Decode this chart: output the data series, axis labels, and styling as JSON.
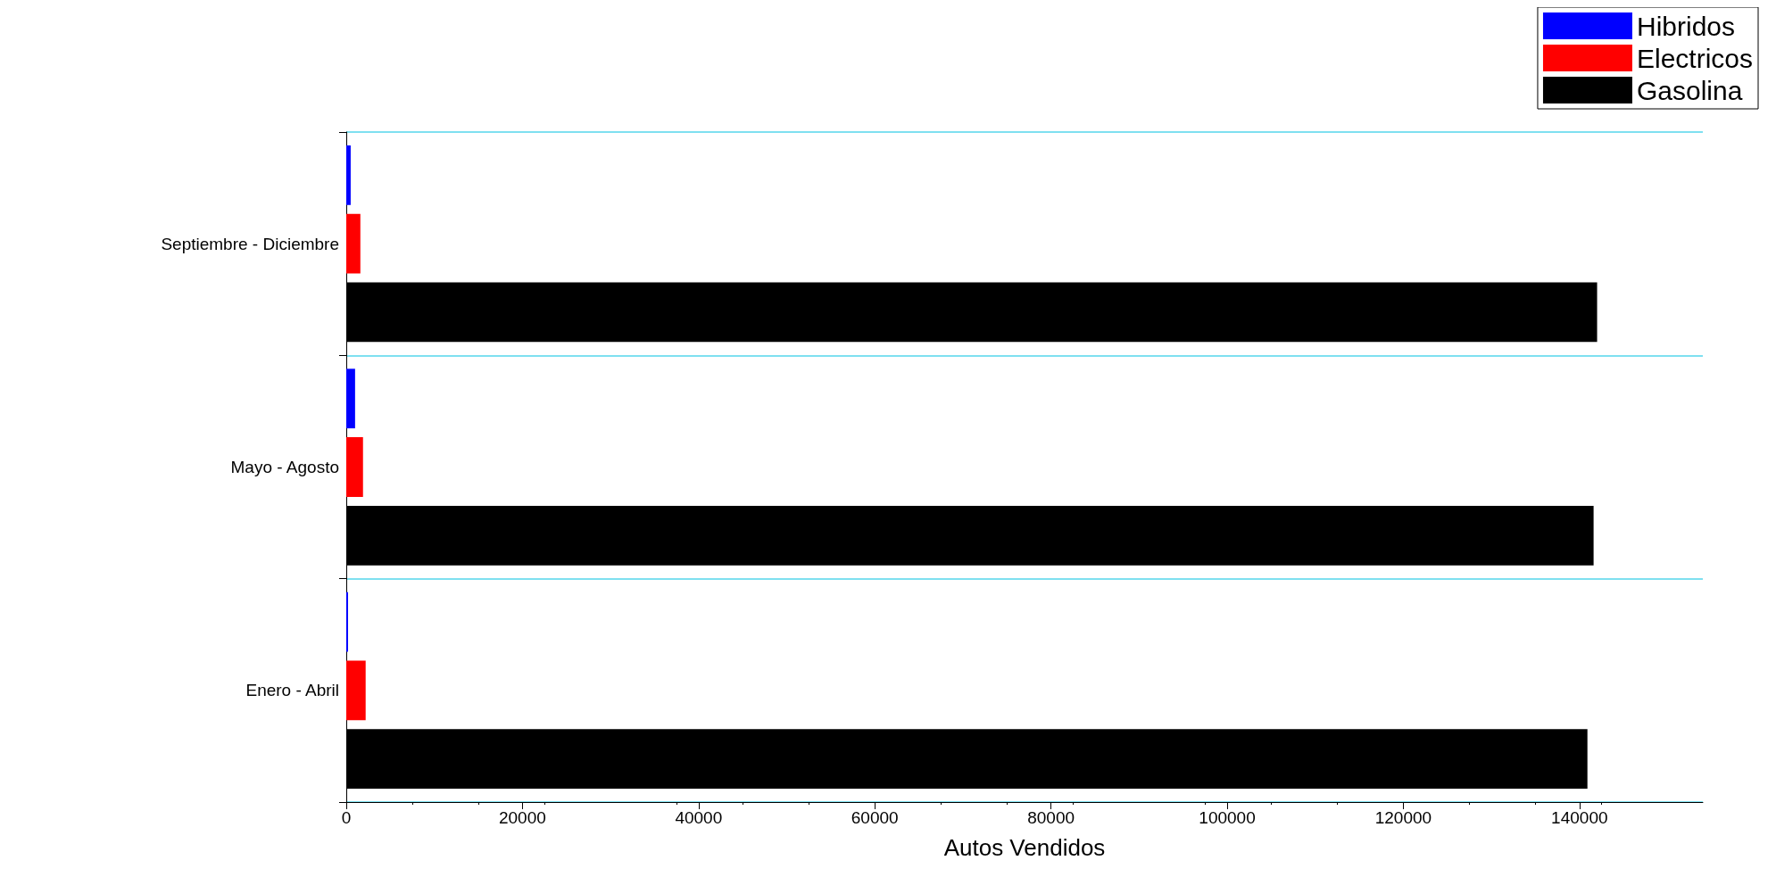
{
  "chart_data": {
    "type": "bar",
    "orientation": "horizontal",
    "xlabel": "Autos Vendidos",
    "categories": [
      "Septiembre - Diciembre",
      "Mayo - Agosto",
      "Enero - Abril"
    ],
    "series": [
      {
        "name": "Hibridos",
        "color": "#0000ff",
        "values": [
          500,
          1000,
          200
        ]
      },
      {
        "name": "Electricos",
        "color": "#ff0000",
        "values": [
          1600,
          1900,
          2200
        ]
      },
      {
        "name": "Gasolina",
        "color": "#000000",
        "values": [
          142000,
          141600,
          140900
        ]
      }
    ],
    "xlim": [
      0,
      154000
    ],
    "xticks": [
      0,
      20000,
      40000,
      60000,
      80000,
      100000,
      120000,
      140000
    ],
    "grid": "y",
    "legend": "top right"
  }
}
